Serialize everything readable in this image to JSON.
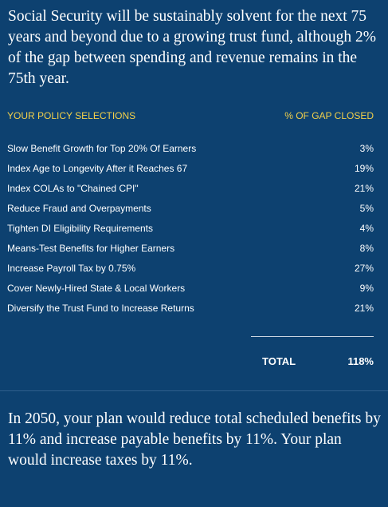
{
  "summary": {
    "text": "Social Security will be sustainably solvent for the next 75 years and beyond due to a growing trust fund, although 2% of the gap between spending and revenue remains in the 75th year."
  },
  "table": {
    "header_left": "YOUR POLICY SELECTIONS",
    "header_right": "% OF GAP CLOSED",
    "rows": [
      {
        "label": "Slow Benefit Growth for Top 20% Of Earners",
        "value": "3%"
      },
      {
        "label": "Index Age to Longevity After it Reaches 67",
        "value": "19%"
      },
      {
        "label": "Index COLAs to \"Chained CPI\"",
        "value": "21%"
      },
      {
        "label": "Reduce Fraud and Overpayments",
        "value": "5%"
      },
      {
        "label": "Tighten DI Eligibility Requirements",
        "value": "4%"
      },
      {
        "label": "Means-Test Benefits for Higher Earners",
        "value": "8%"
      },
      {
        "label": "Increase Payroll Tax by 0.75%",
        "value": "27%"
      },
      {
        "label": "Cover Newly-Hired State & Local Workers",
        "value": "9%"
      },
      {
        "label": "Diversify the Trust Fund to Increase Returns",
        "value": "21%"
      }
    ],
    "total_label": "TOTAL",
    "total_value": "118%"
  },
  "impact": {
    "text": "In 2050, your plan would reduce total scheduled benefits by 11% and increase payable benefits by 11%. Your plan would increase taxes by 11%."
  },
  "colors": {
    "background": "#0d4170",
    "header_text": "#f2d04a",
    "body_text": "#ffffff"
  }
}
